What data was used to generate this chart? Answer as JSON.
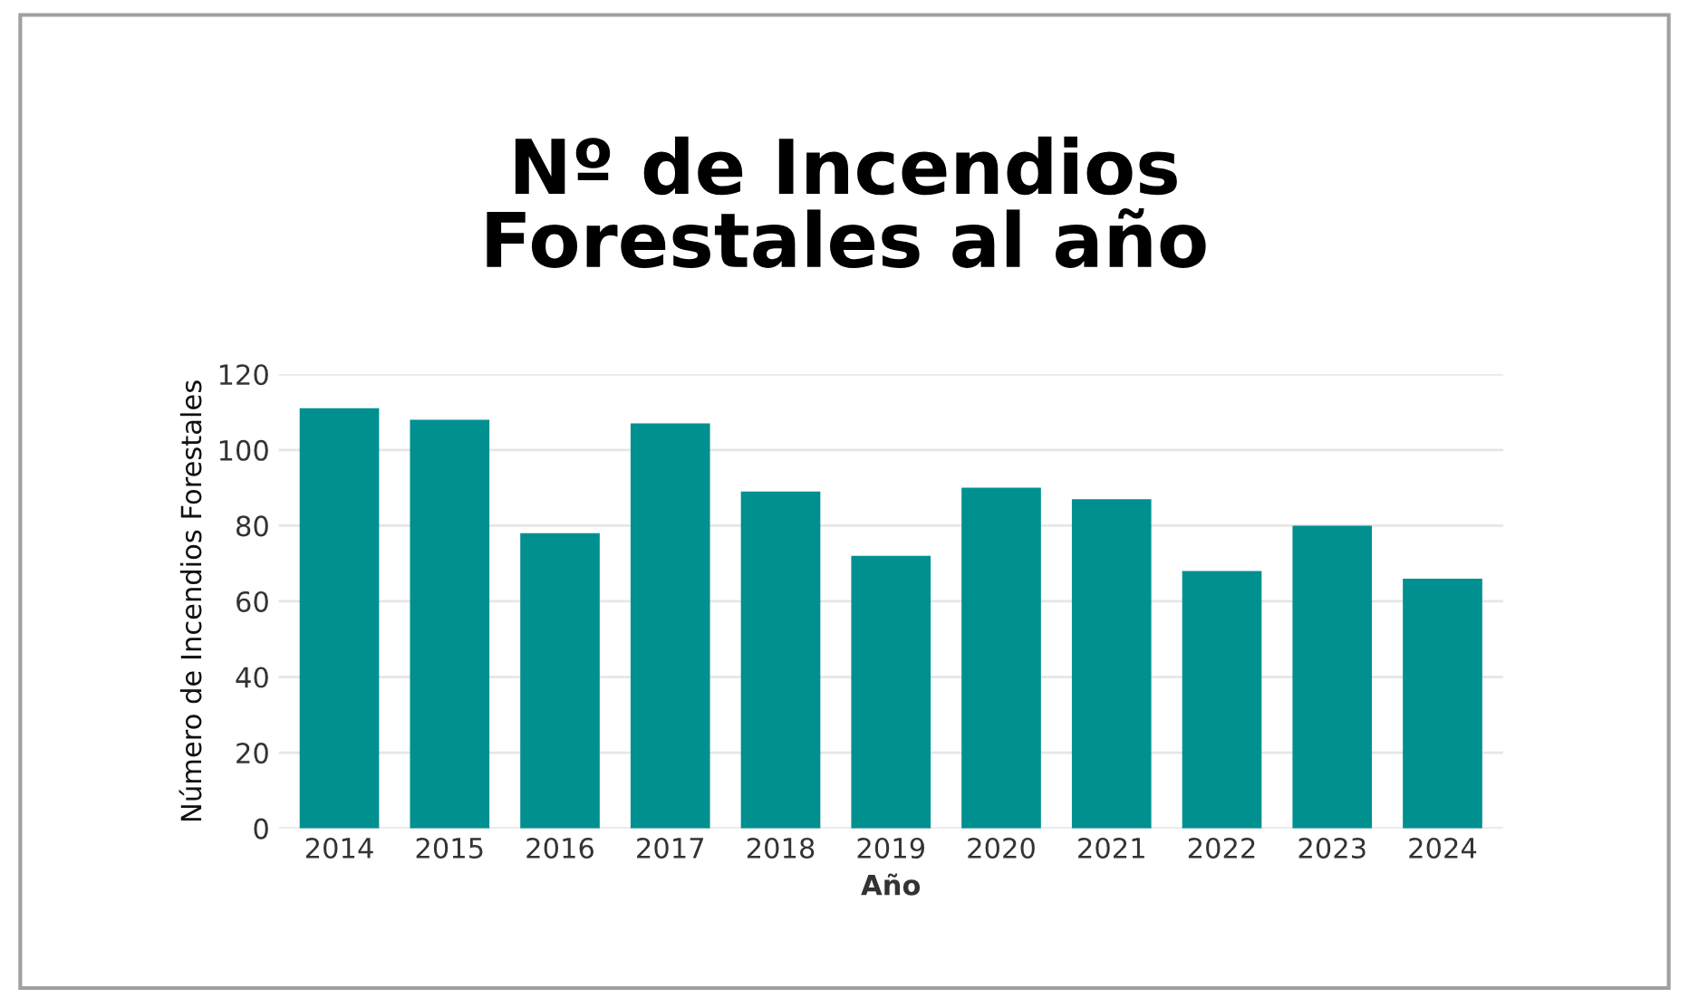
{
  "chart_data": {
    "type": "bar",
    "title": "Nº de Incendios\nForestales al año",
    "xlabel": "Año",
    "ylabel": "Número de Incendios Forestales",
    "categories": [
      "2014",
      "2015",
      "2016",
      "2017",
      "2018",
      "2019",
      "2020",
      "2021",
      "2022",
      "2023",
      "2024"
    ],
    "values": [
      111,
      108,
      78,
      107,
      89,
      72,
      90,
      87,
      68,
      80,
      66
    ],
    "color": "#00908f",
    "ylim": [
      0,
      120
    ],
    "yticks": [
      0,
      20,
      40,
      60,
      80,
      100,
      120
    ],
    "grid": "y"
  }
}
